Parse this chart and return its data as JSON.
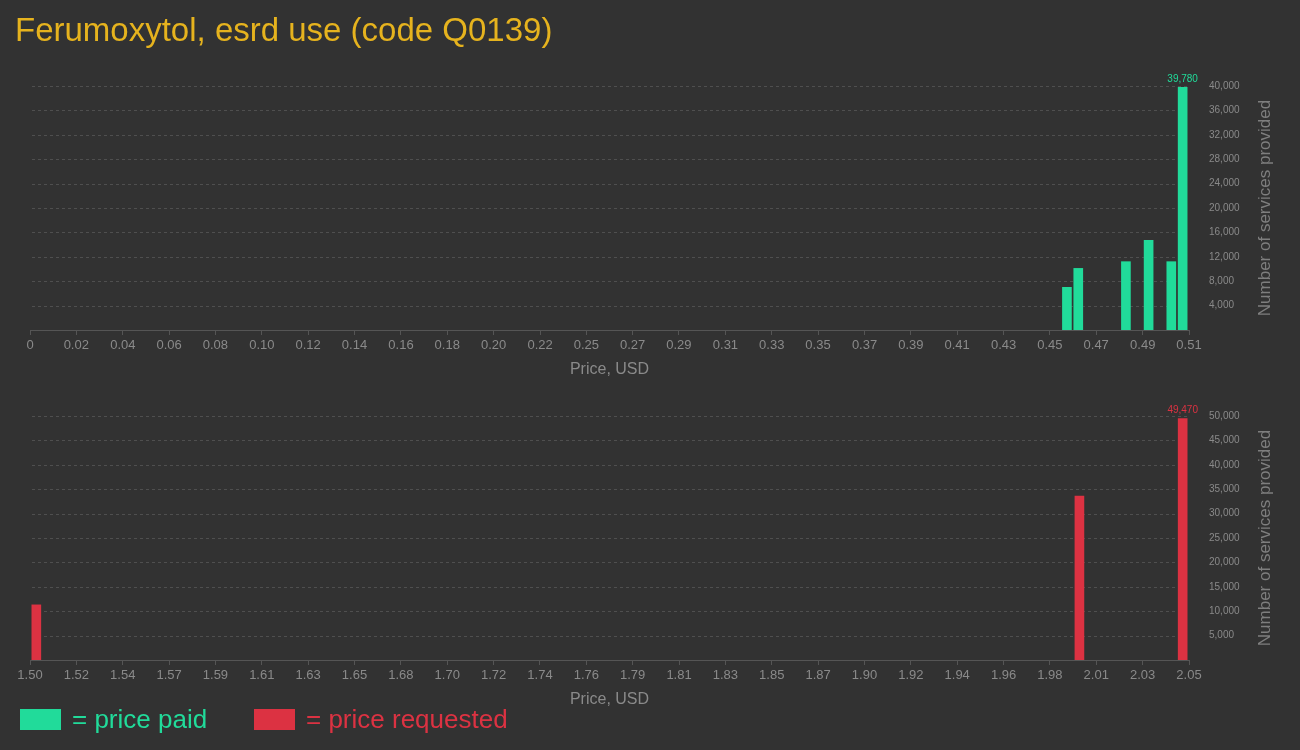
{
  "chart_data": [
    {
      "type": "bar",
      "title": "Ferumoxytol, esrd use (code Q0139)",
      "xlabel": "Price, USD",
      "ylabel": "Number of services provided",
      "x": [
        0.457,
        0.462,
        0.483,
        0.493,
        0.503,
        0.508
      ],
      "series": [
        {
          "name": "= price paid",
          "color": "#21db9a",
          "values": [
            7000,
            10100,
            11200,
            14700,
            11200,
            39780
          ],
          "value_labels": [
            null,
            null,
            null,
            null,
            null,
            "39,780"
          ]
        }
      ],
      "xlim": [
        0,
        0.5108
      ],
      "xticks": [
        0,
        {
          "value": 0.0204,
          "label": "0.02"
        },
        {
          "value": 0.0409,
          "label": "0.04"
        },
        {
          "value": 0.0613,
          "label": "0.06"
        },
        {
          "value": 0.0817,
          "label": "0.08"
        },
        {
          "value": 0.1022,
          "label": "0.10"
        },
        {
          "value": 0.1226,
          "label": "0.12"
        },
        {
          "value": 0.143,
          "label": "0.14"
        },
        {
          "value": 0.1635,
          "label": "0.16"
        },
        {
          "value": 0.1839,
          "label": "0.18"
        },
        {
          "value": 0.2043,
          "label": "0.20"
        },
        {
          "value": 0.2248,
          "label": "0.22"
        },
        {
          "value": 0.2452,
          "label": "0.25"
        },
        {
          "value": 0.2656,
          "label": "0.27"
        },
        {
          "value": 0.286,
          "label": "0.29"
        },
        {
          "value": 0.3065,
          "label": "0.31"
        },
        {
          "value": 0.3269,
          "label": "0.33"
        },
        {
          "value": 0.3473,
          "label": "0.35"
        },
        {
          "value": 0.3678,
          "label": "0.37"
        },
        {
          "value": 0.3882,
          "label": "0.39"
        },
        {
          "value": 0.4086,
          "label": "0.41"
        },
        {
          "value": 0.4291,
          "label": "0.43"
        },
        {
          "value": 0.4495,
          "label": "0.45"
        },
        {
          "value": 0.4699,
          "label": "0.47"
        },
        {
          "value": 0.4904,
          "label": "0.49"
        },
        {
          "value": 0.5108,
          "label": "0.51"
        }
      ],
      "ylim": [
        0,
        40000
      ],
      "yticks": [
        {
          "value": 4000,
          "label": "4,000"
        },
        {
          "value": 8000,
          "label": "8,000"
        },
        {
          "value": 12000,
          "label": "12,000"
        },
        {
          "value": 16000,
          "label": "16,000"
        },
        {
          "value": 20000,
          "label": "20,000"
        },
        {
          "value": 24000,
          "label": "24,000"
        },
        {
          "value": 28000,
          "label": "28,000"
        },
        {
          "value": 32000,
          "label": "32,000"
        },
        {
          "value": 36000,
          "label": "36,000"
        },
        {
          "value": 40000,
          "label": "40,000"
        }
      ],
      "grid": "y",
      "legend": "bottom left"
    },
    {
      "type": "bar",
      "xlabel": "Price, USD",
      "ylabel": "Number of services provided",
      "x": [
        1.503,
        1.998,
        2.047
      ],
      "series": [
        {
          "name": "= price requested",
          "color": "#dc3242",
          "values": [
            11300,
            33600,
            49470
          ],
          "value_labels": [
            null,
            null,
            "49,470"
          ]
        }
      ],
      "xlim": [
        1.5,
        2.05
      ],
      "xticks": [
        {
          "value": 1.5,
          "label": "1.50"
        },
        {
          "value": 1.522,
          "label": "1.52"
        },
        {
          "value": 1.544,
          "label": "1.54"
        },
        {
          "value": 1.566,
          "label": "1.57"
        },
        {
          "value": 1.588,
          "label": "1.59"
        },
        1.61,
        {
          "value": 1.632,
          "label": "1.63"
        },
        {
          "value": 1.654,
          "label": "1.65"
        },
        {
          "value": 1.676,
          "label": "1.68"
        },
        {
          "value": 1.698,
          "label": "1.70"
        },
        1.72,
        {
          "value": 1.742,
          "label": "1.74"
        },
        {
          "value": 1.764,
          "label": "1.76"
        },
        {
          "value": 1.786,
          "label": "1.79"
        },
        {
          "value": 1.808,
          "label": "1.81"
        },
        1.83,
        {
          "value": 1.852,
          "label": "1.85"
        },
        {
          "value": 1.874,
          "label": "1.87"
        },
        {
          "value": 1.896,
          "label": "1.90"
        },
        {
          "value": 1.918,
          "label": "1.92"
        },
        1.94,
        {
          "value": 1.962,
          "label": "1.96"
        },
        {
          "value": 1.984,
          "label": "1.98"
        },
        {
          "value": 2.006,
          "label": "2.01"
        },
        {
          "value": 2.028,
          "label": "2.03"
        },
        2.05
      ],
      "ylim": [
        0,
        50000
      ],
      "yticks": [
        {
          "value": 5000,
          "label": "5,000"
        },
        {
          "value": 10000,
          "label": "10,000"
        },
        {
          "value": 15000,
          "label": "15,000"
        },
        {
          "value": 20000,
          "label": "20,000"
        },
        {
          "value": 25000,
          "label": "25,000"
        },
        {
          "value": 30000,
          "label": "30,000"
        },
        {
          "value": 35000,
          "label": "35,000"
        },
        {
          "value": 40000,
          "label": "40,000"
        },
        {
          "value": 45000,
          "label": "45,000"
        },
        {
          "value": 50000,
          "label": "50,000"
        }
      ],
      "grid": "y",
      "legend": "bottom left"
    }
  ]
}
